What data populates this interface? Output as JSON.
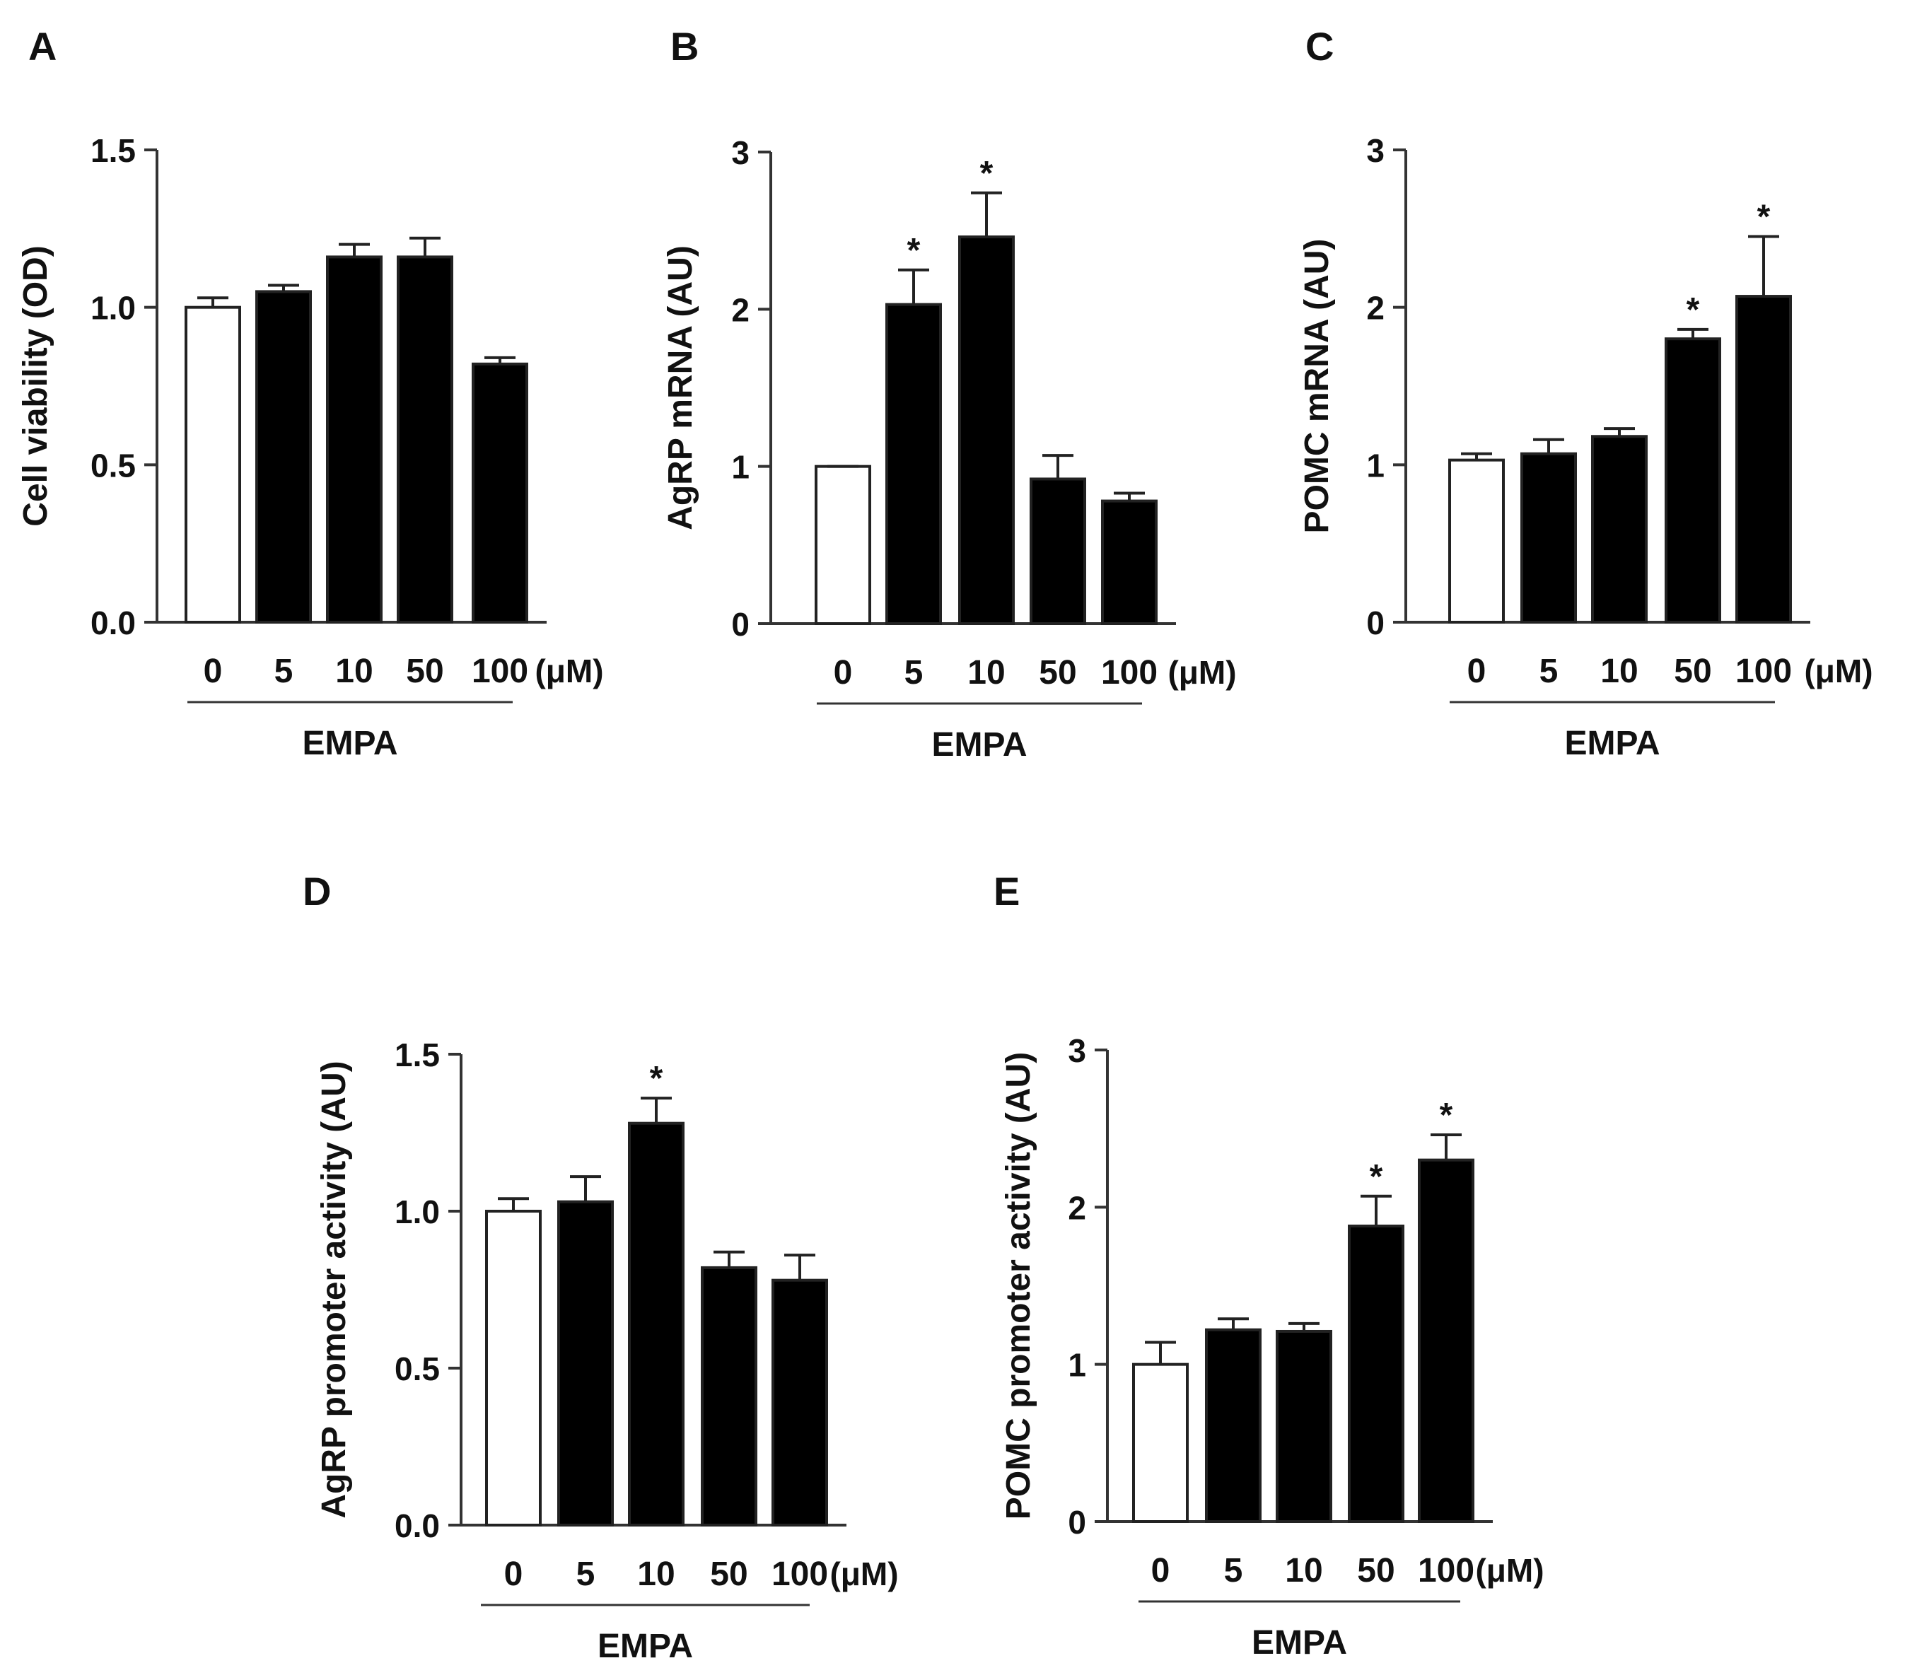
{
  "chart_data": [
    {
      "panel": "A",
      "type": "bar",
      "ylabel": "Cell viability (OD)",
      "categories": [
        "0",
        "5",
        "10",
        "50",
        "100"
      ],
      "unit_label": "(μM)",
      "group_label": "EMPA",
      "ylim": [
        0,
        1.5
      ],
      "yticks": [
        "0.0",
        "0.5",
        "1.0",
        "1.5"
      ],
      "values": [
        1.0,
        1.05,
        1.16,
        1.16,
        0.82
      ],
      "errors": [
        0.03,
        0.02,
        0.04,
        0.06,
        0.02
      ],
      "significant": [
        false,
        false,
        false,
        false,
        false
      ],
      "fills": [
        "#ffffff",
        "#000000",
        "#000000",
        "#000000",
        "#000000"
      ],
      "sig_symbol": "*"
    },
    {
      "panel": "B",
      "type": "bar",
      "ylabel": "AgRP mRNA (AU)",
      "categories": [
        "0",
        "5",
        "10",
        "50",
        "100"
      ],
      "unit_label": "(μM)",
      "group_label": "EMPA",
      "ylim": [
        0,
        3
      ],
      "yticks": [
        "0",
        "1",
        "2",
        "3"
      ],
      "values": [
        1.0,
        2.03,
        2.46,
        0.92,
        0.78
      ],
      "errors": [
        0.0,
        0.22,
        0.28,
        0.15,
        0.05
      ],
      "significant": [
        false,
        true,
        true,
        false,
        false
      ],
      "fills": [
        "#ffffff",
        "#000000",
        "#000000",
        "#000000",
        "#000000"
      ],
      "sig_symbol": "*"
    },
    {
      "panel": "C",
      "type": "bar",
      "ylabel": "POMC mRNA  (AU)",
      "categories": [
        "0",
        "5",
        "10",
        "50",
        "100"
      ],
      "unit_label": "(μM)",
      "group_label": "EMPA",
      "ylim": [
        0,
        3
      ],
      "yticks": [
        "0",
        "1",
        "2",
        "3"
      ],
      "values": [
        1.03,
        1.07,
        1.18,
        1.8,
        2.07
      ],
      "errors": [
        0.04,
        0.09,
        0.05,
        0.06,
        0.38
      ],
      "significant": [
        false,
        false,
        false,
        true,
        true
      ],
      "fills": [
        "#ffffff",
        "#000000",
        "#000000",
        "#000000",
        "#000000"
      ],
      "sig_symbol": "*"
    },
    {
      "panel": "D",
      "type": "bar",
      "ylabel": "AgRP promoter activity  (AU)",
      "categories": [
        "0",
        "5",
        "10",
        "50",
        "100"
      ],
      "unit_label": "(μM)",
      "group_label": "EMPA",
      "ylim": [
        0,
        1.5
      ],
      "yticks": [
        "0.0",
        "0.5",
        "1.0",
        "1.5"
      ],
      "values": [
        1.0,
        1.03,
        1.28,
        0.82,
        0.78
      ],
      "errors": [
        0.04,
        0.08,
        0.08,
        0.05,
        0.08
      ],
      "significant": [
        false,
        false,
        true,
        false,
        false
      ],
      "fills": [
        "#ffffff",
        "#000000",
        "#000000",
        "#000000",
        "#000000"
      ],
      "sig_symbol": "*"
    },
    {
      "panel": "E",
      "type": "bar",
      "ylabel": "POMC promoter activity (AU)",
      "categories": [
        "0",
        "5",
        "10",
        "50",
        "100"
      ],
      "unit_label": "(μM)",
      "group_label": "EMPA",
      "ylim": [
        0,
        3
      ],
      "yticks": [
        "0",
        "1",
        "2",
        "3"
      ],
      "values": [
        1.0,
        1.22,
        1.21,
        1.88,
        2.3
      ],
      "errors": [
        0.14,
        0.07,
        0.05,
        0.19,
        0.16
      ],
      "significant": [
        false,
        false,
        false,
        true,
        true
      ],
      "fills": [
        "#ffffff",
        "#000000",
        "#000000",
        "#000000",
        "#000000"
      ],
      "sig_symbol": "*"
    }
  ]
}
